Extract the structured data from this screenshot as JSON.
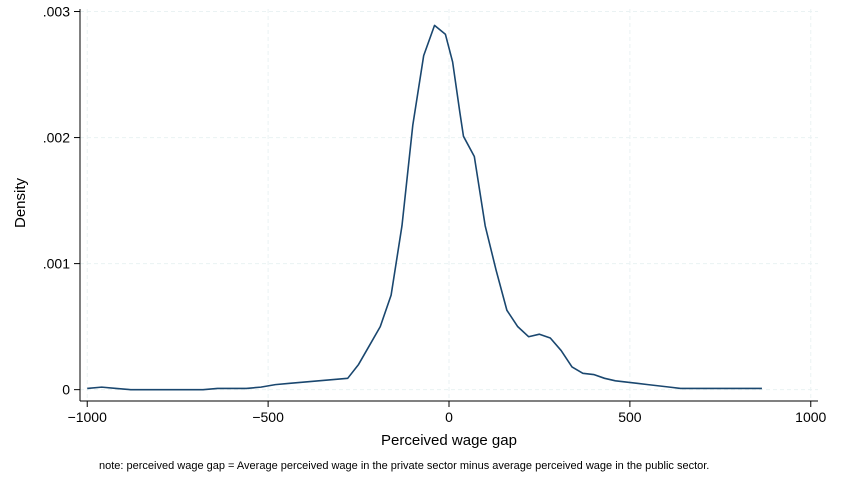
{
  "chart_data": {
    "type": "line",
    "title": "",
    "xlabel": "Perceived wage gap",
    "ylabel": "Density",
    "note": "note: perceived wage gap = Average perceived wage in the private sector minus average perceived wage in the public sector.",
    "xlim": [
      -1020,
      1020
    ],
    "ylim": [
      -9e-05,
      0.00302
    ],
    "x_ticks": [
      -1000,
      -500,
      0,
      500,
      1000
    ],
    "x_tick_labels": [
      "−1000",
      "−500",
      "0",
      "500",
      "1000"
    ],
    "y_ticks": [
      0,
      0.001,
      0.002,
      0.003
    ],
    "y_tick_labels": [
      "0",
      ".001",
      ".002",
      ".003"
    ],
    "grid": true,
    "legend": "none",
    "colors": {
      "line": "#1a476f",
      "grid": "#eaf2f3",
      "background": "#ffffff"
    },
    "series": [
      {
        "x": [
          -1000,
          -960,
          -920,
          -880,
          -840,
          -800,
          -760,
          -720,
          -680,
          -640,
          -600,
          -560,
          -520,
          -480,
          -440,
          -400,
          -360,
          -320,
          -280,
          -250,
          -220,
          -190,
          -160,
          -130,
          -100,
          -70,
          -40,
          -10,
          10,
          30,
          40,
          70,
          100,
          130,
          160,
          190,
          220,
          250,
          280,
          310,
          340,
          370,
          400,
          430,
          460,
          490,
          520,
          550,
          580,
          610,
          640,
          670,
          700,
          730,
          760,
          790,
          820,
          865
        ],
        "y": [
          1e-05,
          2e-05,
          1e-05,
          0.0,
          0.0,
          0.0,
          0.0,
          0.0,
          0.0,
          1e-05,
          1e-05,
          1e-05,
          2e-05,
          4e-05,
          5e-05,
          6e-05,
          7e-05,
          8e-05,
          9e-05,
          0.0002,
          0.00035,
          0.0005,
          0.00075,
          0.0013,
          0.0021,
          0.00265,
          0.00289,
          0.00282,
          0.0026,
          0.0022,
          0.00201,
          0.00185,
          0.0013,
          0.00095,
          0.00063,
          0.0005,
          0.00042,
          0.00044,
          0.00041,
          0.00031,
          0.00018,
          0.00013,
          0.00012,
          9e-05,
          7e-05,
          6e-05,
          5e-05,
          4e-05,
          3e-05,
          2e-05,
          1e-05,
          1e-05,
          1e-05,
          1e-05,
          1e-05,
          1e-05,
          1e-05,
          1e-05
        ]
      }
    ]
  }
}
